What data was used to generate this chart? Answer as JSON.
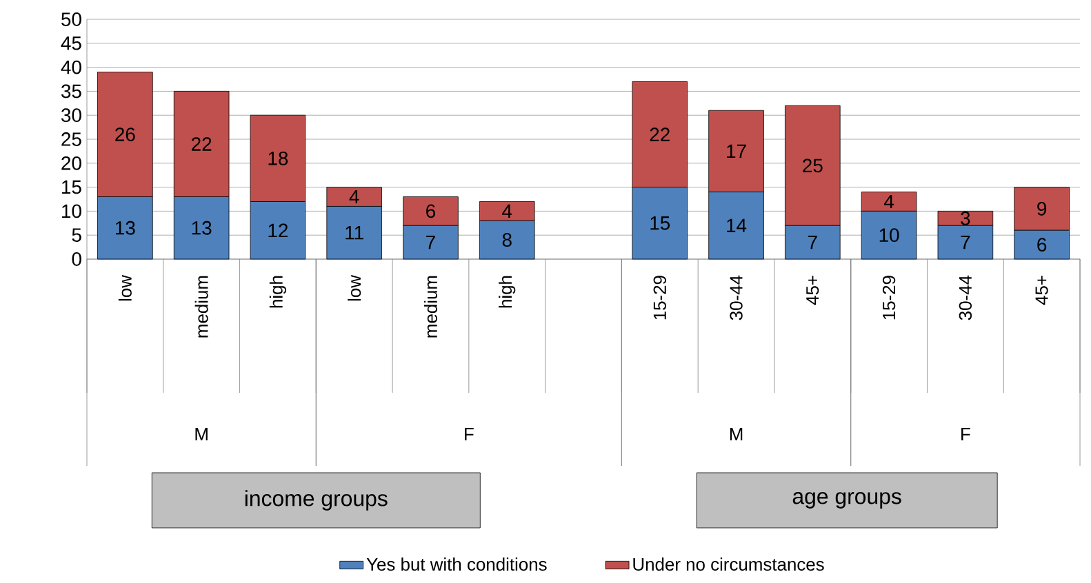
{
  "chart_data": {
    "type": "bar",
    "stacked": true,
    "categories": [
      "low",
      "medium",
      "high",
      "low",
      "medium",
      "high",
      null,
      "15-29",
      "30-44",
      "45+",
      "15-29",
      "30-44",
      "45+"
    ],
    "series": [
      {
        "name": "Yes but with conditions",
        "color": "#4f81bd",
        "values": [
          13,
          13,
          12,
          11,
          7,
          8,
          null,
          15,
          14,
          7,
          10,
          7,
          6
        ]
      },
      {
        "name": "Under no circumstances",
        "color": "#c0504d",
        "values": [
          26,
          22,
          18,
          4,
          6,
          4,
          null,
          22,
          17,
          25,
          4,
          3,
          9
        ]
      }
    ],
    "ylim": [
      0,
      50
    ],
    "yticks": [
      0,
      5,
      10,
      15,
      20,
      25,
      30,
      35,
      40,
      45,
      50
    ],
    "grid": "y",
    "legend": "bottom",
    "data_labels": true,
    "annotations": [
      "M",
      "F",
      "M",
      "F",
      "income groups",
      "age groups"
    ]
  }
}
